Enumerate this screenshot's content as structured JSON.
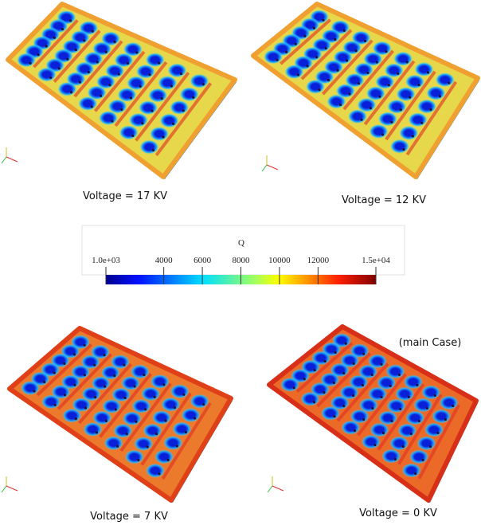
{
  "panels": [
    {
      "caption": "Voltage = 17 KV"
    },
    {
      "caption": "Voltage = 12 KV"
    },
    {
      "caption": "Voltage = 7 KV"
    },
    {
      "caption": "Voltage = 0 KV",
      "note": "(main Case)"
    }
  ],
  "colorbar": {
    "title": "Q",
    "lim": [
      1000,
      15000
    ],
    "ticks": [
      {
        "value": 1000,
        "label": "1.0e+03"
      },
      4000,
      6000,
      8000,
      10000,
      12000,
      {
        "value": 15000,
        "label": "1.5e+04"
      }
    ]
  }
}
